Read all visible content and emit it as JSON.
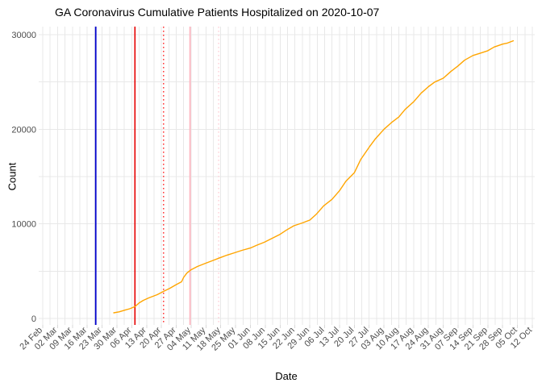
{
  "title": "GA Coronavirus Cumulative Patients Hospitalized on 2020-10-07",
  "axes": {
    "x_label": "Date",
    "y_label": "Count"
  },
  "chart_data": {
    "type": "line",
    "title": "GA Coronavirus Cumulative Patients Hospitalized on 2020-10-07",
    "xlabel": "Date",
    "ylabel": "Count",
    "background_color": "#ffffff",
    "grid_color": "#e8e8e8",
    "tick_label_color": "#4d4d4d",
    "x_tick_labels": [
      "24 Feb",
      "02 Mar",
      "09 Mar",
      "16 Mar",
      "23 Mar",
      "30 Mar",
      "06 Apr",
      "13 Apr",
      "20 Apr",
      "27 Apr",
      "04 May",
      "11 May",
      "18 May",
      "25 May",
      "01 Jun",
      "08 Jun",
      "15 Jun",
      "22 Jun",
      "29 Jun",
      "06 Jul",
      "13 Jul",
      "20 Jul",
      "27 Jul",
      "03 Aug",
      "10 Aug",
      "17 Aug",
      "24 Aug",
      "31 Aug",
      "07 Sep",
      "14 Sep",
      "21 Sep",
      "28 Sep",
      "05 Oct",
      "12 Oct"
    ],
    "x_days_per_tick": 7,
    "x_range_days": 231,
    "y_tick_labels": [
      "0",
      "10000",
      "20000",
      "30000"
    ],
    "y_ticks": [
      0,
      10000,
      20000,
      30000
    ],
    "y_minor_ticks": [
      5000,
      15000,
      25000
    ],
    "ylim": [
      0,
      30000
    ],
    "legend": "none",
    "series": [
      {
        "name": "cumulative-patients-hospitalized",
        "color": "#FFA500",
        "width": 1.4,
        "points": [
          [
            33.5,
            600
          ],
          [
            36,
            700
          ],
          [
            39,
            900
          ],
          [
            41,
            1020
          ],
          [
            43.5,
            1250
          ],
          [
            45.5,
            1650
          ],
          [
            47.5,
            1920
          ],
          [
            50,
            2170
          ],
          [
            54,
            2510
          ],
          [
            57,
            2860
          ],
          [
            60,
            3200
          ],
          [
            63,
            3580
          ],
          [
            65.5,
            3880
          ],
          [
            66.5,
            4350
          ],
          [
            68,
            4800
          ],
          [
            70,
            5150
          ],
          [
            73,
            5500
          ],
          [
            76.5,
            5800
          ],
          [
            80,
            6100
          ],
          [
            84,
            6450
          ],
          [
            87,
            6700
          ],
          [
            90.5,
            6950
          ],
          [
            94,
            7200
          ],
          [
            98,
            7450
          ],
          [
            101,
            7750
          ],
          [
            104.5,
            8050
          ],
          [
            108,
            8450
          ],
          [
            112,
            8900
          ],
          [
            115,
            9350
          ],
          [
            118.5,
            9800
          ],
          [
            122.5,
            10100
          ],
          [
            126,
            10400
          ],
          [
            129,
            11000
          ],
          [
            132.5,
            11900
          ],
          [
            136.5,
            12600
          ],
          [
            140,
            13500
          ],
          [
            143,
            14500
          ],
          [
            147,
            15400
          ],
          [
            150,
            16800
          ],
          [
            154,
            18100
          ],
          [
            157,
            19000
          ],
          [
            161,
            20000
          ],
          [
            164.5,
            20700
          ],
          [
            168,
            21300
          ],
          [
            171,
            22100
          ],
          [
            175,
            22900
          ],
          [
            178.5,
            23800
          ],
          [
            182,
            24500
          ],
          [
            185,
            25000
          ],
          [
            189,
            25400
          ],
          [
            192.5,
            26100
          ],
          [
            196,
            26700
          ],
          [
            199,
            27300
          ],
          [
            203,
            27800
          ],
          [
            206.5,
            28050
          ],
          [
            210,
            28300
          ],
          [
            213,
            28700
          ],
          [
            217,
            29000
          ],
          [
            219,
            29100
          ],
          [
            222,
            29350
          ]
        ]
      }
    ],
    "event_lines": [
      {
        "name": "vline-blue-solid",
        "day": 25,
        "color": "#0000CD",
        "width": 1.8,
        "dash": ""
      },
      {
        "name": "vline-red-solid",
        "day": 43.5,
        "color": "#E60000",
        "width": 1.6,
        "dash": ""
      },
      {
        "name": "vline-red-dotted",
        "day": 57,
        "color": "#FF2A2A",
        "width": 1.4,
        "dash": "1.6,3.4"
      },
      {
        "name": "vline-pink-solid",
        "day": 69.5,
        "color": "#FFB6C1",
        "width": 1.8,
        "dash": ""
      },
      {
        "name": "vline-pink-dotted",
        "day": 83,
        "color": "#FFD0D8",
        "width": 1.4,
        "dash": "1.6,3.4"
      }
    ]
  }
}
